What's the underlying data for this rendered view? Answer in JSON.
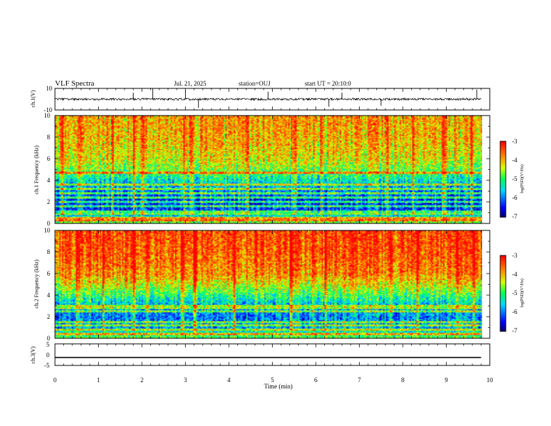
{
  "header": {
    "title": "VLF Spectra",
    "date": "Jul. 21, 2025",
    "station": "station=OUJ",
    "start_ut": "start UT =  20:10:0"
  },
  "colorbar_label": "log(PSD)(V²/Hz)",
  "chart_data": [
    {
      "type": "line",
      "panel": "ch.1 waveform",
      "ylabel": "ch.1(V)",
      "ylim": [
        -10,
        10
      ],
      "yticks": [
        "10",
        "-10"
      ],
      "xlim": [
        0,
        10
      ],
      "x_end": 9.8,
      "baseline": 0,
      "noise_amplitude": 1.0,
      "spikes": [
        {
          "x": 1.8,
          "y": 6
        },
        {
          "x": 2.25,
          "y": 10
        },
        {
          "x": 3.0,
          "y": 8
        },
        {
          "x": 3.3,
          "y": -8
        },
        {
          "x": 4.9,
          "y": 7
        },
        {
          "x": 6.3,
          "y": -7
        },
        {
          "x": 6.6,
          "y": 6
        },
        {
          "x": 7.5,
          "y": -6
        },
        {
          "x": 9.7,
          "y": 9
        }
      ]
    },
    {
      "type": "heatmap",
      "panel": "ch.1 spectrogram",
      "ylabel": "ch.1 Frequency (kHz)",
      "ylim": [
        0,
        10
      ],
      "yticks": [
        "0",
        "2",
        "4",
        "6",
        "8",
        "10"
      ],
      "xlim": [
        0,
        10
      ],
      "x_end": 9.8,
      "colorbar": {
        "range": [
          -7,
          -3
        ],
        "ticks": [
          "-3",
          "-4",
          "-5",
          "-6",
          "-7"
        ]
      },
      "profile": [
        {
          "khz": 0.0,
          "log_psd": -4.6
        },
        {
          "khz": 0.5,
          "log_psd": -5.0
        },
        {
          "khz": 1.0,
          "log_psd": -6.2
        },
        {
          "khz": 2.0,
          "log_psd": -6.4
        },
        {
          "khz": 3.0,
          "log_psd": -6.0
        },
        {
          "khz": 4.0,
          "log_psd": -5.4
        },
        {
          "khz": 5.0,
          "log_psd": -4.7
        },
        {
          "khz": 6.0,
          "log_psd": -4.3
        },
        {
          "khz": 8.0,
          "log_psd": -4.0
        },
        {
          "khz": 10.0,
          "log_psd": -3.9
        }
      ],
      "lines_khz": [
        0.3,
        0.5,
        0.9,
        1.1,
        1.6,
        2.0,
        2.4,
        2.8,
        3.2,
        3.6,
        4.7
      ],
      "bursts_min": [
        0.15,
        0.55,
        1.3,
        1.8,
        2.0,
        2.95,
        3.1,
        3.45,
        4.4,
        5.5,
        6.1,
        6.9,
        7.6,
        8.2,
        8.9,
        9.55
      ]
    },
    {
      "type": "heatmap",
      "panel": "ch.2 spectrogram",
      "ylabel": "ch.2 Frequency (kHz)",
      "ylim": [
        0,
        10
      ],
      "yticks": [
        "0",
        "2",
        "4",
        "6",
        "8",
        "10"
      ],
      "xlim": [
        0,
        10
      ],
      "x_end": 9.8,
      "colorbar": {
        "range": [
          -7,
          -3
        ],
        "ticks": [
          "-3",
          "-4",
          "-5",
          "-6",
          "-7"
        ]
      },
      "profile": [
        {
          "khz": 0.0,
          "log_psd": -4.8
        },
        {
          "khz": 0.5,
          "log_psd": -5.2
        },
        {
          "khz": 1.0,
          "log_psd": -5.8
        },
        {
          "khz": 2.0,
          "log_psd": -6.0
        },
        {
          "khz": 3.0,
          "log_psd": -5.7
        },
        {
          "khz": 4.0,
          "log_psd": -5.0
        },
        {
          "khz": 5.0,
          "log_psd": -4.3
        },
        {
          "khz": 6.0,
          "log_psd": -3.8
        },
        {
          "khz": 8.0,
          "log_psd": -3.5
        },
        {
          "khz": 10.0,
          "log_psd": -3.4
        }
      ],
      "lines_khz": [
        0.4,
        0.8,
        1.2,
        1.5,
        2.5,
        2.8,
        3.0
      ],
      "bursts_min": [
        0.5,
        1.1,
        1.8,
        2.1,
        2.9,
        3.2,
        4.1,
        4.6,
        5.4,
        5.9,
        6.2,
        6.8,
        7.7,
        8.3,
        9.2,
        9.6
      ]
    },
    {
      "type": "line",
      "panel": "ch.3 waveform",
      "ylabel": "ch.3(V)",
      "ylim": [
        -5,
        5
      ],
      "yticks": [
        "5",
        "0",
        "-5"
      ],
      "xlim": [
        0,
        10
      ],
      "x_end": 9.8,
      "xlabel": "Time (min)",
      "xticks": [
        "0",
        "1",
        "2",
        "3",
        "4",
        "5",
        "6",
        "7",
        "8",
        "9",
        "10"
      ],
      "values": [
        {
          "x": 0,
          "y": -1.3
        },
        {
          "x": 9.8,
          "y": -1.3
        }
      ]
    }
  ]
}
